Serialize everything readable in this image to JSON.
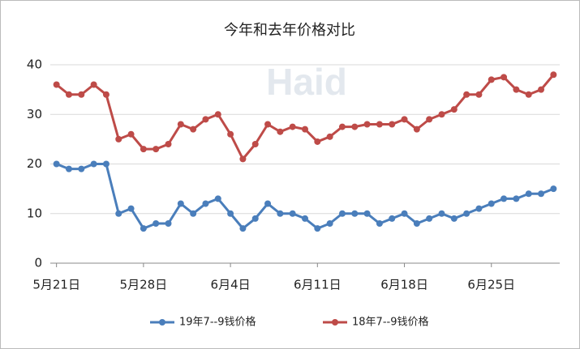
{
  "chart_data": {
    "type": "line",
    "title": "今年和去年价格对比",
    "watermark": "Haid",
    "categories": [
      "5月21日",
      null,
      null,
      null,
      null,
      null,
      null,
      "5月28日",
      null,
      null,
      null,
      null,
      null,
      null,
      "6月4日",
      null,
      null,
      null,
      null,
      null,
      null,
      "6月11日",
      null,
      null,
      null,
      null,
      null,
      null,
      "6月18日",
      null,
      null,
      null,
      null,
      null,
      null,
      "6月25日",
      null,
      null,
      null,
      null,
      null
    ],
    "series": [
      {
        "name": "19年7--9钱价格",
        "color": "#4a7ebb",
        "values": [
          20,
          19,
          19,
          20,
          20,
          10,
          11,
          7,
          8,
          8,
          12,
          10,
          12,
          13,
          10,
          7,
          9,
          12,
          10,
          10,
          9,
          7,
          8,
          10,
          10,
          10,
          8,
          9,
          10,
          8,
          9,
          10,
          9,
          10,
          11,
          12,
          13,
          13,
          14,
          14,
          15
        ]
      },
      {
        "name": "18年7--9钱价格",
        "color": "#be4b48",
        "values": [
          36,
          34,
          34,
          36,
          34,
          25,
          26,
          23,
          23,
          24,
          28,
          27,
          29,
          30,
          26,
          21,
          24,
          28,
          26.5,
          27.5,
          27,
          24.5,
          25.5,
          27.5,
          27.5,
          28,
          28,
          28,
          29,
          27,
          29,
          30,
          31,
          34,
          34,
          37,
          37.5,
          35,
          34,
          35,
          38
        ]
      }
    ],
    "ylim": [
      0,
      40
    ],
    "yticks": [
      0,
      10,
      20,
      30,
      40
    ],
    "grid": true,
    "legend": "bottom"
  }
}
